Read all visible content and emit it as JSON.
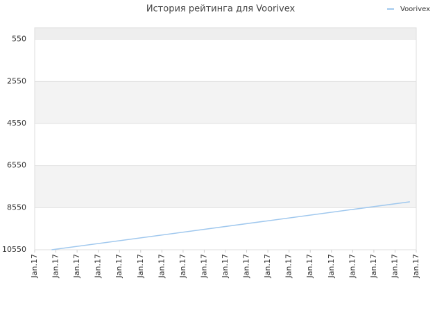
{
  "chart_data": {
    "type": "line",
    "title": "История рейтинга для Voorivex",
    "x": [
      0.8,
      17.7
    ],
    "series": [
      {
        "name": "Voorivex",
        "color": "#a0c8ee",
        "values": [
          10550,
          8270
        ]
      }
    ],
    "xlim": [
      0,
      18
    ],
    "xticks": [
      {
        "value": 0,
        "label": "Jan.17"
      },
      {
        "value": 1,
        "label": "Jan.17"
      },
      {
        "value": 2,
        "label": "Jan.17"
      },
      {
        "value": 3,
        "label": "Jan.17"
      },
      {
        "value": 4,
        "label": "Jan.17"
      },
      {
        "value": 5,
        "label": "Jan.17"
      },
      {
        "value": 6,
        "label": "Jan.17"
      },
      {
        "value": 7,
        "label": "Jan.17"
      },
      {
        "value": 8,
        "label": "Jan.17"
      },
      {
        "value": 9,
        "label": "Jan.17"
      },
      {
        "value": 10,
        "label": "Jan.17"
      },
      {
        "value": 11,
        "label": "Jan.17"
      },
      {
        "value": 12,
        "label": "Jan.17"
      },
      {
        "value": 13,
        "label": "Jan.17"
      },
      {
        "value": 14,
        "label": "Jan.17"
      },
      {
        "value": 15,
        "label": "Jan.17"
      },
      {
        "value": 16,
        "label": "Jan.17"
      },
      {
        "value": 17,
        "label": "Jan.17"
      },
      {
        "value": 18,
        "label": "Jan.17"
      }
    ],
    "ylim": [
      10550,
      0
    ],
    "yticks": [
      550,
      2550,
      4550,
      6550,
      8550,
      10550
    ],
    "grid": true,
    "legend": "top-right"
  }
}
